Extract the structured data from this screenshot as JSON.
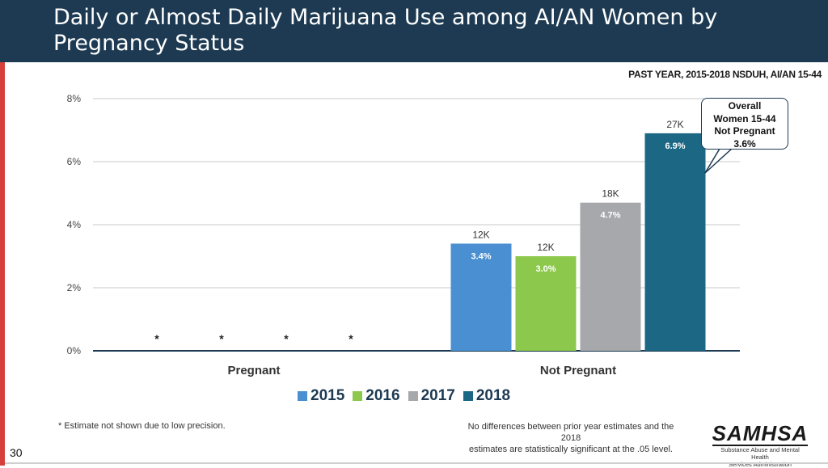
{
  "header": {
    "title": "Daily or Almost Daily Marijuana Use among AI/AN Women by Pregnancy Status",
    "subtitle": "PAST YEAR, 2015-2018  NSDUH, AI/AN 15-44"
  },
  "chart_data": {
    "type": "bar",
    "title": "Daily or Almost Daily Marijuana Use among AI/AN Women by Pregnancy Status",
    "categories": [
      "Pregnant",
      "Not Pregnant"
    ],
    "series": [
      {
        "name": "2015",
        "color": "#4a8fd1",
        "values": [
          null,
          3.4
        ],
        "labels": [
          "*",
          "3.4%"
        ],
        "counts": [
          "",
          "12K"
        ]
      },
      {
        "name": "2016",
        "color": "#8cc84b",
        "values": [
          null,
          3.0
        ],
        "labels": [
          "*",
          "3.0%"
        ],
        "counts": [
          "",
          "12K"
        ]
      },
      {
        "name": "2017",
        "color": "#a6a8ab",
        "values": [
          null,
          4.7
        ],
        "labels": [
          "*",
          "4.7%"
        ],
        "counts": [
          "",
          "18K"
        ]
      },
      {
        "name": "2018",
        "color": "#1b6784",
        "values": [
          null,
          6.9
        ],
        "labels": [
          "*",
          "6.9%"
        ],
        "counts": [
          "",
          "27K"
        ]
      }
    ],
    "ylim": [
      0,
      8
    ],
    "yticks": [
      0,
      2,
      4,
      6,
      8
    ],
    "ytick_labels": [
      "0%",
      "2%",
      "4%",
      "6%",
      "8%"
    ],
    "xlabel": "",
    "ylabel": "",
    "annotation": {
      "lines": [
        "Overall",
        "Women 15-44",
        "Not Pregnant",
        "3.6%"
      ]
    }
  },
  "footnotes": {
    "left": "* Estimate not shown due to low precision.",
    "right_line1": "No differences between prior year estimates and the 2018",
    "right_line2": "estimates are statistically significant at the .05 level."
  },
  "page_number": "30",
  "logo": {
    "name": "SAMHSA",
    "sub_line1": "Substance Abuse and Mental Health",
    "sub_line2": "Services Administration"
  }
}
